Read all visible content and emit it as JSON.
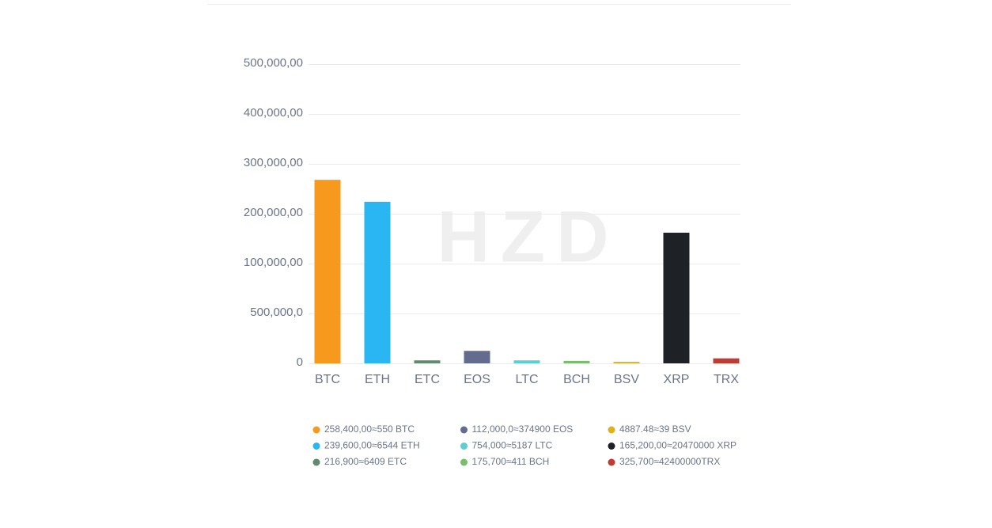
{
  "chart_data": {
    "type": "bar",
    "watermark": "HZD",
    "categories": [
      "BTC",
      "ETH",
      "ETC",
      "EOS",
      "LTC",
      "BCH",
      "BSV",
      "XRP",
      "TRX"
    ],
    "values": [
      368000,
      324000,
      6000,
      25000,
      6000,
      5000,
      3000,
      262000,
      10000
    ],
    "colors": [
      "#f7991c",
      "#29b6f2",
      "#5f8a6e",
      "#636c8e",
      "#5bcfd3",
      "#7bbd6e",
      "#ddb21d",
      "#1e2226",
      "#c23b32"
    ],
    "ylim": [
      0,
      600000
    ],
    "yticks": [
      0,
      {
        "value": 100000,
        "label": "500,000,0"
      },
      {
        "value": 200000,
        "label": "100,000,00"
      },
      {
        "value": 300000,
        "label": "200,000,00"
      },
      {
        "value": 400000,
        "label": "300,000,00"
      },
      {
        "value": 500000,
        "label": "400,000,00"
      },
      {
        "value": 600000,
        "label": "500,000,00"
      }
    ],
    "grid": true,
    "legend": [
      {
        "text": "258,400,00≈550 BTC",
        "color": "#f7991c"
      },
      {
        "text": "239,600,00≈6544 ETH",
        "color": "#29b6f2"
      },
      {
        "text": "216,900≈6409 ETC",
        "color": "#5f8a6e"
      },
      {
        "text": "112,000,0≈374900 EOS",
        "color": "#636c8e"
      },
      {
        "text": "754,000≈5187 LTC",
        "color": "#5bcfd3"
      },
      {
        "text": "175,700≈411 BCH",
        "color": "#7bbd6e"
      },
      {
        "text": "4887.48≈39 BSV",
        "color": "#ddb21d"
      },
      {
        "text": "165,200,00≈20470000 XRP",
        "color": "#1e2226"
      },
      {
        "text": "325,700≈42400000TRX",
        "color": "#c23b32"
      }
    ]
  }
}
